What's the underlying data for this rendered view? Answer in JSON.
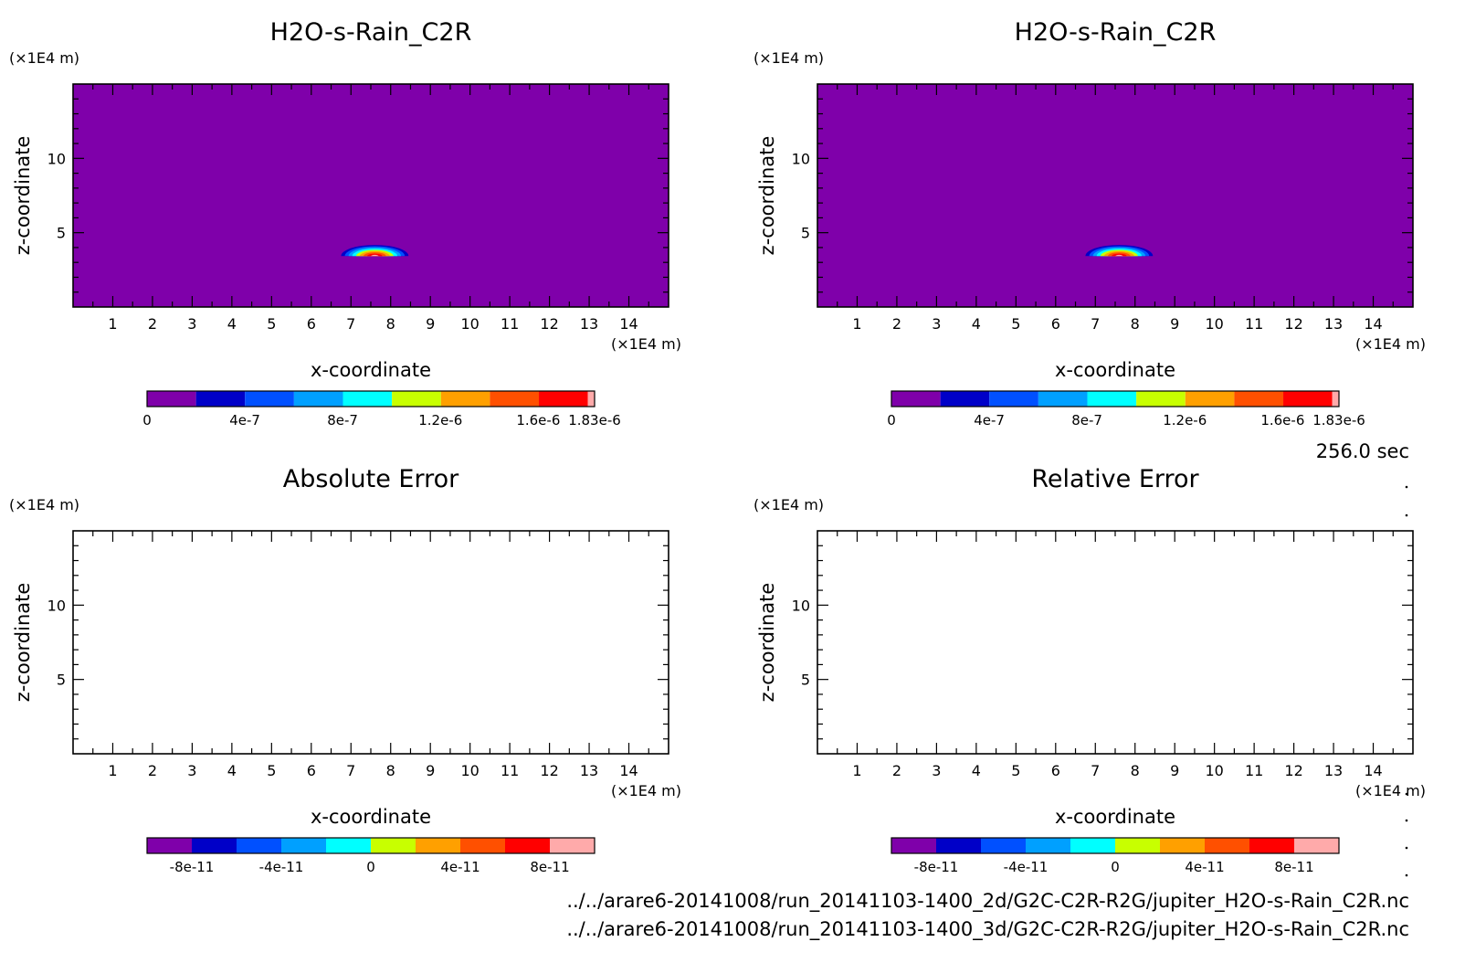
{
  "chart_data": [
    {
      "type": "heatmap",
      "title": "H2O-s-Rain_C2R",
      "xlabel": "x-coordinate",
      "ylabel": "z-coordinate",
      "x_unit": "(×1E4 m)",
      "y_unit": "(×1E4 m)",
      "xlim": [
        0,
        15
      ],
      "ylim": [
        0,
        15
      ],
      "xticks": [
        "1",
        "2",
        "3",
        "4",
        "5",
        "6",
        "7",
        "8",
        "9",
        "10",
        "11",
        "12",
        "13",
        "14"
      ],
      "yticks": [
        "5",
        "10"
      ],
      "background_color": "#7f00aa",
      "field": {
        "feature": "rain-blob",
        "center_x": 7.6,
        "center_z": 3.8,
        "half_width": 0.85,
        "height": 0.75,
        "max_value": 1.83e-06
      },
      "colorbar": {
        "colors": [
          "#7f00aa",
          "#0000c8",
          "#0050ff",
          "#00a0ff",
          "#00ffff",
          "#c8ff00",
          "#ffa000",
          "#ff5000",
          "#ff0000",
          "#ffaaaa"
        ],
        "labels": [
          {
            "text": "0",
            "pos": 0
          },
          {
            "text": "4e-7",
            "pos": 0.2185
          },
          {
            "text": "8e-7",
            "pos": 0.437
          },
          {
            "text": "1.2e-6",
            "pos": 0.6556
          },
          {
            "text": "1.6e-6",
            "pos": 0.8742
          },
          {
            "text": "1.83e-6",
            "pos": 1.0
          }
        ]
      }
    },
    {
      "type": "heatmap",
      "title": "H2O-s-Rain_C2R",
      "xlabel": "x-coordinate",
      "ylabel": "z-coordinate",
      "x_unit": "(×1E4 m)",
      "y_unit": "(×1E4 m)",
      "xlim": [
        0,
        15
      ],
      "ylim": [
        0,
        15
      ],
      "xticks": [
        "1",
        "2",
        "3",
        "4",
        "5",
        "6",
        "7",
        "8",
        "9",
        "10",
        "11",
        "12",
        "13",
        "14"
      ],
      "yticks": [
        "5",
        "10"
      ],
      "background_color": "#7f00aa",
      "field": {
        "feature": "rain-blob",
        "center_x": 7.6,
        "center_z": 3.8,
        "half_width": 0.85,
        "height": 0.75,
        "max_value": 1.83e-06
      },
      "colorbar": {
        "colors": [
          "#7f00aa",
          "#0000c8",
          "#0050ff",
          "#00a0ff",
          "#00ffff",
          "#c8ff00",
          "#ffa000",
          "#ff5000",
          "#ff0000",
          "#ffaaaa"
        ],
        "labels": [
          {
            "text": "0",
            "pos": 0
          },
          {
            "text": "4e-7",
            "pos": 0.2185
          },
          {
            "text": "8e-7",
            "pos": 0.437
          },
          {
            "text": "1.2e-6",
            "pos": 0.6556
          },
          {
            "text": "1.6e-6",
            "pos": 0.8742
          },
          {
            "text": "1.83e-6",
            "pos": 1.0
          }
        ]
      }
    },
    {
      "type": "heatmap",
      "title": "Absolute Error",
      "xlabel": "x-coordinate",
      "ylabel": "z-coordinate",
      "x_unit": "(×1E4 m)",
      "y_unit": "(×1E4 m)",
      "xlim": [
        0,
        15
      ],
      "ylim": [
        0,
        15
      ],
      "xticks": [
        "1",
        "2",
        "3",
        "4",
        "5",
        "6",
        "7",
        "8",
        "9",
        "10",
        "11",
        "12",
        "13",
        "14"
      ],
      "yticks": [
        "5",
        "10"
      ],
      "background_color": "#ffffff",
      "field": null,
      "colorbar": {
        "colors": [
          "#7f00aa",
          "#0000c8",
          "#0050ff",
          "#00a0ff",
          "#00ffff",
          "#c8ff00",
          "#ffa000",
          "#ff5000",
          "#ff0000",
          "#ffaaaa"
        ],
        "labels": [
          {
            "text": "-8e-11",
            "pos": 0.1
          },
          {
            "text": "-4e-11",
            "pos": 0.3
          },
          {
            "text": "0",
            "pos": 0.5
          },
          {
            "text": "4e-11",
            "pos": 0.7
          },
          {
            "text": "8e-11",
            "pos": 0.9
          }
        ]
      }
    },
    {
      "type": "heatmap",
      "title": "Relative Error",
      "xlabel": "x-coordinate",
      "ylabel": "z-coordinate",
      "x_unit": "(×1E4 m)",
      "y_unit": "(×1E4 m)",
      "xlim": [
        0,
        15
      ],
      "ylim": [
        0,
        15
      ],
      "xticks": [
        "1",
        "2",
        "3",
        "4",
        "5",
        "6",
        "7",
        "8",
        "9",
        "10",
        "11",
        "12",
        "13",
        "14"
      ],
      "yticks": [
        "5",
        "10"
      ],
      "background_color": "#ffffff",
      "field": null,
      "colorbar": {
        "colors": [
          "#7f00aa",
          "#0000c8",
          "#0050ff",
          "#00a0ff",
          "#00ffff",
          "#c8ff00",
          "#ffa000",
          "#ff5000",
          "#ff0000",
          "#ffaaaa"
        ],
        "labels": [
          {
            "text": "-8e-11",
            "pos": 0.1
          },
          {
            "text": "-4e-11",
            "pos": 0.3
          },
          {
            "text": "0",
            "pos": 0.5
          },
          {
            "text": "4e-11",
            "pos": 0.7
          },
          {
            "text": "8e-11",
            "pos": 0.9
          }
        ]
      }
    }
  ],
  "time_label": "256.0 sec",
  "file_paths": [
    "../../arare6-20141008/run_20141103-1400_2d/G2C-C2R-R2G/jupiter_H2O-s-Rain_C2R.nc",
    "../../arare6-20141008/run_20141103-1400_3d/G2C-C2R-R2G/jupiter_H2O-s-Rain_C2R.nc"
  ]
}
